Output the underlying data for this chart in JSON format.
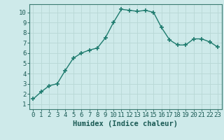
{
  "x": [
    0,
    1,
    2,
    3,
    4,
    5,
    6,
    7,
    8,
    9,
    10,
    11,
    12,
    13,
    14,
    15,
    16,
    17,
    18,
    19,
    20,
    21,
    22,
    23
  ],
  "y": [
    1.5,
    2.2,
    2.8,
    3.0,
    4.3,
    5.5,
    6.0,
    6.3,
    6.5,
    7.5,
    9.0,
    10.3,
    10.2,
    10.1,
    10.2,
    10.0,
    8.5,
    7.3,
    6.8,
    6.8,
    7.4,
    7.4,
    7.1,
    6.6
  ],
  "xlabel": "Humidex (Indice chaleur)",
  "xlim": [
    -0.5,
    23.5
  ],
  "ylim": [
    0.5,
    10.8
  ],
  "yticks": [
    1,
    2,
    3,
    4,
    5,
    6,
    7,
    8,
    9,
    10
  ],
  "xticks": [
    0,
    1,
    2,
    3,
    4,
    5,
    6,
    7,
    8,
    9,
    10,
    11,
    12,
    13,
    14,
    15,
    16,
    17,
    18,
    19,
    20,
    21,
    22,
    23
  ],
  "line_color": "#1e7b6e",
  "marker_color": "#1e7b6e",
  "bg_color": "#ceeaea",
  "grid_color": "#b8d8d5",
  "axis_color": "#3a7a70",
  "label_color": "#1a5a54",
  "tick_fontsize": 6.5,
  "xlabel_fontsize": 7.5
}
